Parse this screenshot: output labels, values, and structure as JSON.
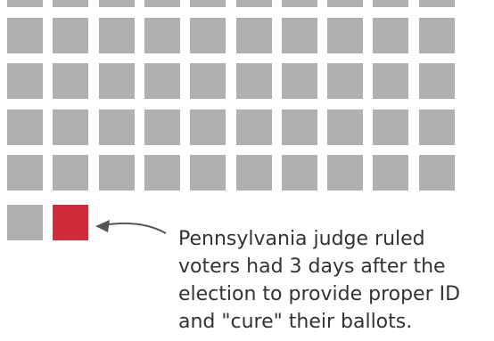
{
  "colors": {
    "square": "#b0b0b0",
    "highlight": "#d12a3a",
    "arrow": "#555555",
    "text": "#333333"
  },
  "grid": {
    "columns": 10,
    "rows": [
      {
        "count": 10,
        "highlight": []
      },
      {
        "count": 10,
        "highlight": []
      },
      {
        "count": 10,
        "highlight": []
      },
      {
        "count": 10,
        "highlight": []
      },
      {
        "count": 10,
        "highlight": []
      },
      {
        "count": 2,
        "highlight": [
          1
        ]
      }
    ]
  },
  "annotation": {
    "lines": [
      "Pennsylvania judge ruled",
      "voters had 3 days after the",
      "election to provide proper ID",
      "and \"cure\" their ballots."
    ]
  }
}
